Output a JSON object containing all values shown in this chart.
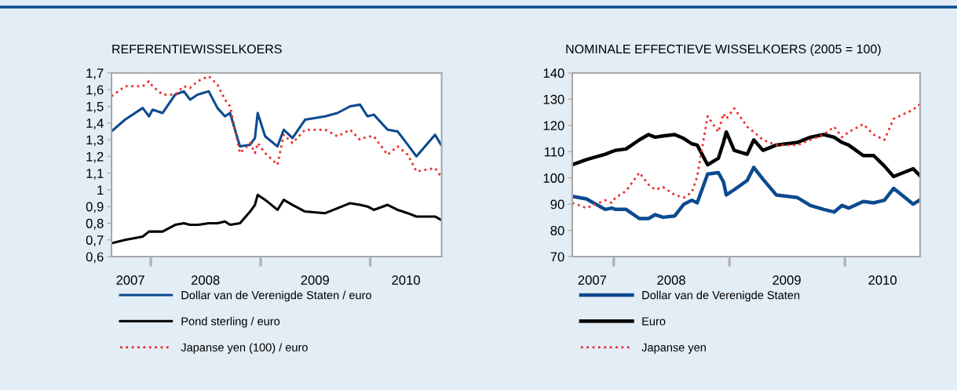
{
  "chart_data": [
    {
      "type": "line",
      "title": "REFERENTIEWISSELKOERS",
      "legend": "bottom",
      "x": [
        "2007-08-23",
        "2007-10-07",
        "2007-12-05",
        "2007-12-26",
        "2008-01-07",
        "2008-02-09",
        "2008-03-22",
        "2008-04-20",
        "2008-05-11",
        "2008-06-05",
        "2008-07-12",
        "2008-08-10",
        "2008-09-04",
        "2008-09-21",
        "2008-10-24",
        "2008-11-27",
        "2008-12-13",
        "2008-12-22",
        "2009-01-16",
        "2009-02-26",
        "2009-03-19",
        "2009-04-17",
        "2009-05-29",
        "2009-08-04",
        "2009-09-14",
        "2009-10-26",
        "2009-11-28",
        "2009-12-23",
        "2010-01-13",
        "2010-02-28",
        "2010-04-02",
        "2010-05-06",
        "2010-06-04",
        "2010-08-05",
        "2010-08-25"
      ],
      "xlim": [
        "2007-08-23",
        "2010-08-27"
      ],
      "xticks": [
        {
          "value": "2007-10-25",
          "label": "2007"
        },
        {
          "value": "2008-01-01",
          "label": null
        },
        {
          "value": "2008-07-01",
          "label": "2008"
        },
        {
          "value": "2009-01-01",
          "label": null
        },
        {
          "value": "2009-07-01",
          "label": "2009"
        },
        {
          "value": "2010-01-01",
          "label": null
        },
        {
          "value": "2010-04-30",
          "label": "2010"
        }
      ],
      "ylim": [
        0.6,
        1.7
      ],
      "yticks": [
        {
          "value": 0.6,
          "label": "0,6"
        },
        {
          "value": 0.7,
          "label": "0,7"
        },
        {
          "value": 0.8,
          "label": "0,8"
        },
        {
          "value": 0.9,
          "label": "0,9"
        },
        {
          "value": 1,
          "label": "1"
        },
        {
          "value": 1.1,
          "label": "1,1"
        },
        {
          "value": 1.2,
          "label": "1,2"
        },
        {
          "value": 1.3,
          "label": "1,3"
        },
        {
          "value": 1.4,
          "label": "1,4"
        },
        {
          "value": 1.5,
          "label": "1,5"
        },
        {
          "value": 1.6,
          "label": "1,6"
        },
        {
          "value": 1.7,
          "label": "1,7"
        }
      ],
      "series": [
        {
          "name": "Dollar van de Verenigde Staten / euro",
          "color": "#0b4a8f",
          "line_style": "solid",
          "values": [
            1.35,
            1.42,
            1.49,
            1.44,
            1.48,
            1.46,
            1.57,
            1.59,
            1.54,
            1.57,
            1.59,
            1.49,
            1.44,
            1.46,
            1.26,
            1.27,
            1.31,
            1.46,
            1.32,
            1.26,
            1.36,
            1.31,
            1.42,
            1.44,
            1.46,
            1.5,
            1.51,
            1.44,
            1.45,
            1.36,
            1.35,
            1.27,
            1.2,
            1.33,
            1.27
          ]
        },
        {
          "name": "Pond sterling / euro",
          "color": "#000000",
          "line_style": "solid",
          "values": [
            0.68,
            0.7,
            0.72,
            0.75,
            0.75,
            0.75,
            0.79,
            0.8,
            0.79,
            0.79,
            0.8,
            0.8,
            0.81,
            0.79,
            0.8,
            0.87,
            0.91,
            0.97,
            0.94,
            0.88,
            0.94,
            0.91,
            0.87,
            0.86,
            0.89,
            0.92,
            0.91,
            0.9,
            0.88,
            0.91,
            0.88,
            0.86,
            0.84,
            0.84,
            0.82
          ]
        },
        {
          "name": "Japanse yen (100) / euro",
          "color": "#e8302e",
          "line_style": "dotted",
          "values": [
            1.56,
            1.62,
            1.62,
            1.65,
            1.62,
            1.57,
            1.57,
            1.62,
            1.61,
            1.65,
            1.68,
            1.63,
            1.54,
            1.5,
            1.22,
            1.28,
            1.22,
            1.28,
            1.22,
            1.15,
            1.33,
            1.28,
            1.36,
            1.36,
            1.32,
            1.36,
            1.3,
            1.32,
            1.32,
            1.21,
            1.26,
            1.21,
            1.11,
            1.13,
            1.08
          ]
        }
      ]
    },
    {
      "type": "line",
      "title": "NOMINALE EFFECTIEVE WISSELKOERS (2005 = 100)",
      "legend": "bottom",
      "x": [
        "2007-08-23",
        "2007-10-07",
        "2007-12-05",
        "2007-12-26",
        "2008-01-07",
        "2008-02-09",
        "2008-03-22",
        "2008-04-20",
        "2008-05-11",
        "2008-06-05",
        "2008-07-12",
        "2008-08-10",
        "2008-09-04",
        "2008-09-21",
        "2008-10-24",
        "2008-11-27",
        "2008-12-13",
        "2008-12-22",
        "2009-01-16",
        "2009-02-26",
        "2009-03-19",
        "2009-04-17",
        "2009-05-29",
        "2009-08-04",
        "2009-09-14",
        "2009-10-26",
        "2009-11-28",
        "2009-12-23",
        "2010-01-13",
        "2010-02-28",
        "2010-04-02",
        "2010-05-06",
        "2010-06-04",
        "2010-08-05",
        "2010-08-25"
      ],
      "xlim": [
        "2007-08-23",
        "2010-08-27"
      ],
      "xticks": [
        {
          "value": "2007-10-25",
          "label": "2007"
        },
        {
          "value": "2008-01-01",
          "label": null
        },
        {
          "value": "2008-07-01",
          "label": "2008"
        },
        {
          "value": "2009-01-01",
          "label": null
        },
        {
          "value": "2009-07-01",
          "label": "2009"
        },
        {
          "value": "2010-01-01",
          "label": null
        },
        {
          "value": "2010-04-30",
          "label": "2010"
        }
      ],
      "ylim": [
        70,
        140
      ],
      "yticks": [
        70,
        80,
        90,
        100,
        110,
        120,
        130,
        140
      ],
      "series": [
        {
          "name": "Dollar van de Verenigde Staten",
          "color": "#0b4a8f",
          "line_style": "solid",
          "values": [
            93,
            92,
            88,
            88.5,
            88,
            88,
            84.5,
            84.5,
            86,
            85,
            85.5,
            90,
            91.5,
            90.5,
            101.5,
            102,
            98.5,
            93.5,
            95.5,
            99,
            104,
            99.5,
            93.5,
            92.5,
            89.5,
            88,
            87,
            89.5,
            88.5,
            91,
            90.5,
            91.5,
            96,
            90,
            91.5
          ]
        },
        {
          "name": "Euro",
          "color": "#000000",
          "line_style": "solid",
          "values": [
            105,
            107,
            109,
            110,
            110.5,
            111,
            114.5,
            116.5,
            115.5,
            116,
            116.5,
            115,
            113,
            112.5,
            105,
            107.5,
            113.5,
            117.5,
            110.5,
            109,
            114.5,
            110.5,
            112.5,
            113.5,
            115.5,
            116.5,
            115.5,
            113.5,
            112.5,
            108.5,
            108.5,
            104.5,
            100.5,
            103.5,
            101
          ]
        },
        {
          "name": "Japanse yen",
          "color": "#e8302e",
          "line_style": "dotted",
          "values": [
            90.5,
            88.5,
            91.5,
            90.5,
            92.5,
            95,
            102,
            97.5,
            95.5,
            96.5,
            93.5,
            92.5,
            94.5,
            100.5,
            123.5,
            117.5,
            124.5,
            122.5,
            126.5,
            119.5,
            117.5,
            114.5,
            112.5,
            112.5,
            114.5,
            116.5,
            119.5,
            115.5,
            117.5,
            120.5,
            116.5,
            114.5,
            122.5,
            126,
            128
          ]
        }
      ]
    }
  ]
}
